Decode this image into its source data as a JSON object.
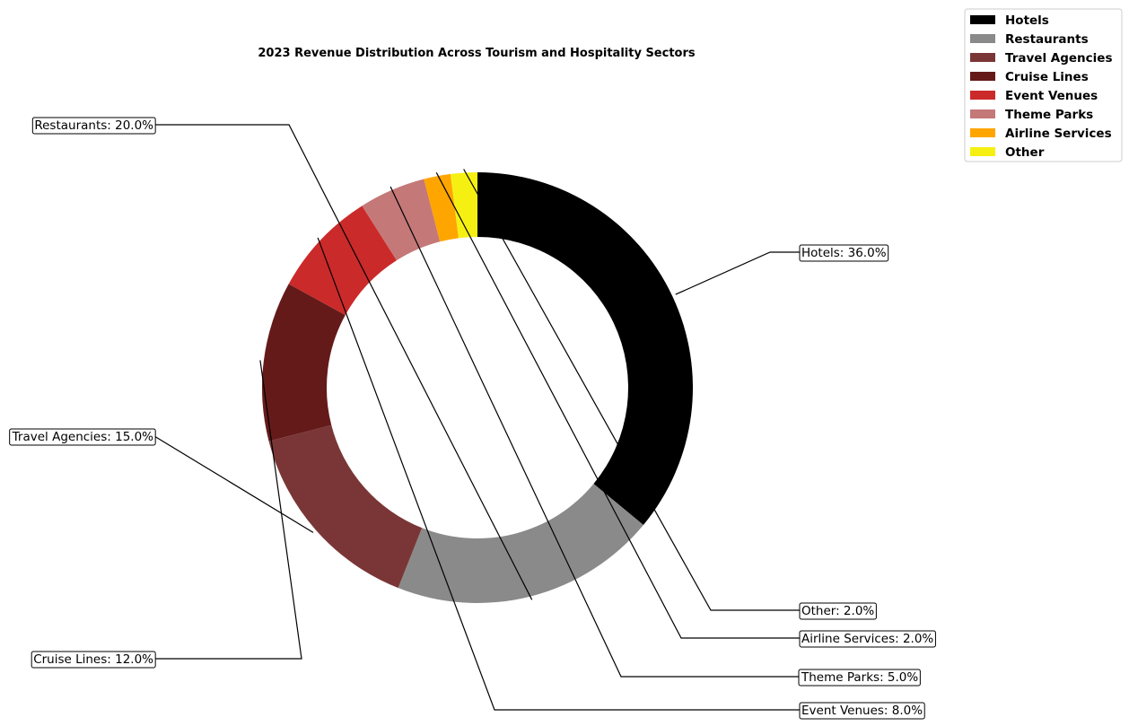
{
  "chart_data": {
    "type": "pie",
    "variant": "donut",
    "title": "2023 Revenue Distribution Across Tourism and Hospitality Sectors",
    "categories": [
      "Hotels",
      "Restaurants",
      "Travel Agencies",
      "Cruise Lines",
      "Event Venues",
      "Theme Parks",
      "Airline Services",
      "Other"
    ],
    "values": [
      36.0,
      20.0,
      15.0,
      12.0,
      8.0,
      5.0,
      2.0,
      2.0
    ],
    "unit": "%",
    "colors": [
      "#000000",
      "#8a8a8a",
      "#7a3636",
      "#651a1a",
      "#cb2a2a",
      "#c47878",
      "#ffa500",
      "#f5f012"
    ],
    "slice_labels": [
      "Hotels: 36.0%",
      "Restaurants: 20.0%",
      "Travel Agencies: 15.0%",
      "Cruise Lines: 12.0%",
      "Event Venues: 8.0%",
      "Theme Parks: 5.0%",
      "Airline Services: 2.0%",
      "Other: 2.0%"
    ],
    "legend": {
      "placement": "top-right",
      "entries": [
        "Hotels",
        "Restaurants",
        "Travel Agencies",
        "Cruise Lines",
        "Event Venues",
        "Theme Parks",
        "Airline Services",
        "Other"
      ]
    },
    "grid": false
  }
}
